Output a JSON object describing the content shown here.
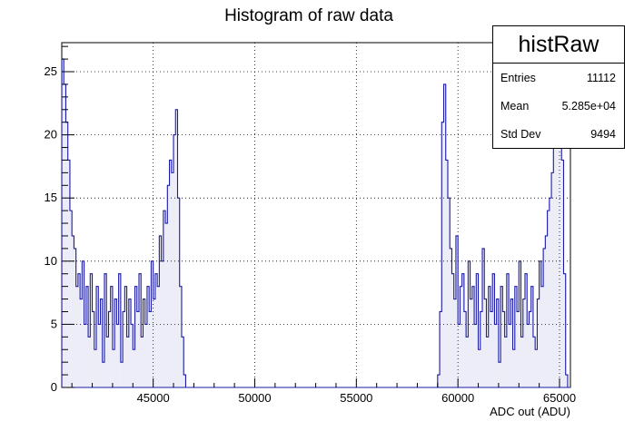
{
  "chart_data": {
    "type": "bar",
    "title": "Histogram of raw data",
    "xlabel": "ADC out (ADU)",
    "ylabel": "",
    "xlim": [
      40500,
      65536
    ],
    "ylim": [
      0,
      27.3
    ],
    "grid": true,
    "line_color": "#1a1aa8",
    "x_ticks": [
      45000,
      50000,
      55000,
      60000,
      65000
    ],
    "y_ticks": [
      0,
      5,
      10,
      15,
      20,
      25
    ],
    "legend_position": "top-right",
    "stats": {
      "name": "histRaw",
      "rows": [
        {
          "label": "Entries",
          "value": "11112"
        },
        {
          "label": "Mean",
          "value": "5.285e+04"
        },
        {
          "label": "Std Dev",
          "value": "9494"
        }
      ]
    },
    "x": [
      40550,
      40650,
      40750,
      40850,
      40950,
      41050,
      41150,
      41250,
      41350,
      41450,
      41550,
      41650,
      41750,
      41850,
      41950,
      42050,
      42150,
      42250,
      42350,
      42450,
      42550,
      42650,
      42750,
      42850,
      42950,
      43050,
      43150,
      43250,
      43350,
      43450,
      43550,
      43650,
      43750,
      43850,
      43950,
      44050,
      44150,
      44250,
      44350,
      44450,
      44550,
      44650,
      44750,
      44850,
      44950,
      45050,
      45150,
      45250,
      45350,
      45450,
      45550,
      45650,
      45750,
      45850,
      45950,
      46050,
      46150,
      46250,
      46350,
      46450,
      46550,
      46650,
      46750,
      59050,
      59150,
      59250,
      59350,
      59450,
      59550,
      59650,
      59750,
      59850,
      59950,
      60050,
      60150,
      60250,
      60350,
      60450,
      60550,
      60650,
      60750,
      60850,
      60950,
      61050,
      61150,
      61250,
      61350,
      61450,
      61550,
      61650,
      61750,
      61850,
      61950,
      62050,
      62150,
      62250,
      62350,
      62450,
      62550,
      62650,
      62750,
      62850,
      62950,
      63050,
      63150,
      63250,
      63350,
      63450,
      63550,
      63650,
      63750,
      63850,
      63950,
      64050,
      64150,
      64250,
      64350,
      64450,
      64550,
      64650,
      64750,
      64850,
      64950,
      65050,
      65150,
      65250,
      65350,
      65450
    ],
    "values": [
      26,
      24,
      21,
      18,
      14,
      12,
      11,
      8,
      9,
      7,
      10,
      5,
      8,
      4,
      9,
      6,
      3,
      8,
      5,
      7,
      2,
      9,
      4,
      6,
      8,
      3,
      7,
      5,
      9,
      2,
      6,
      8,
      4,
      7,
      5,
      3,
      8,
      6,
      9,
      4,
      7,
      5,
      8,
      6,
      10,
      7,
      9,
      8,
      12,
      10,
      14,
      13,
      16,
      18,
      17,
      20,
      22,
      15,
      8,
      4,
      1,
      0,
      0,
      1,
      6,
      21,
      24,
      18,
      15,
      11,
      9,
      7,
      12,
      5,
      8,
      9,
      6,
      4,
      10,
      7,
      8,
      5,
      9,
      3,
      6,
      11,
      7,
      4,
      8,
      6,
      9,
      5,
      7,
      2,
      8,
      6,
      4,
      9,
      5,
      7,
      3,
      8,
      6,
      10,
      4,
      7,
      9,
      5,
      6,
      8,
      4,
      3,
      7,
      10,
      8,
      11,
      12,
      14,
      15,
      17,
      19,
      22,
      20,
      24,
      18,
      9,
      1,
      0
    ]
  }
}
